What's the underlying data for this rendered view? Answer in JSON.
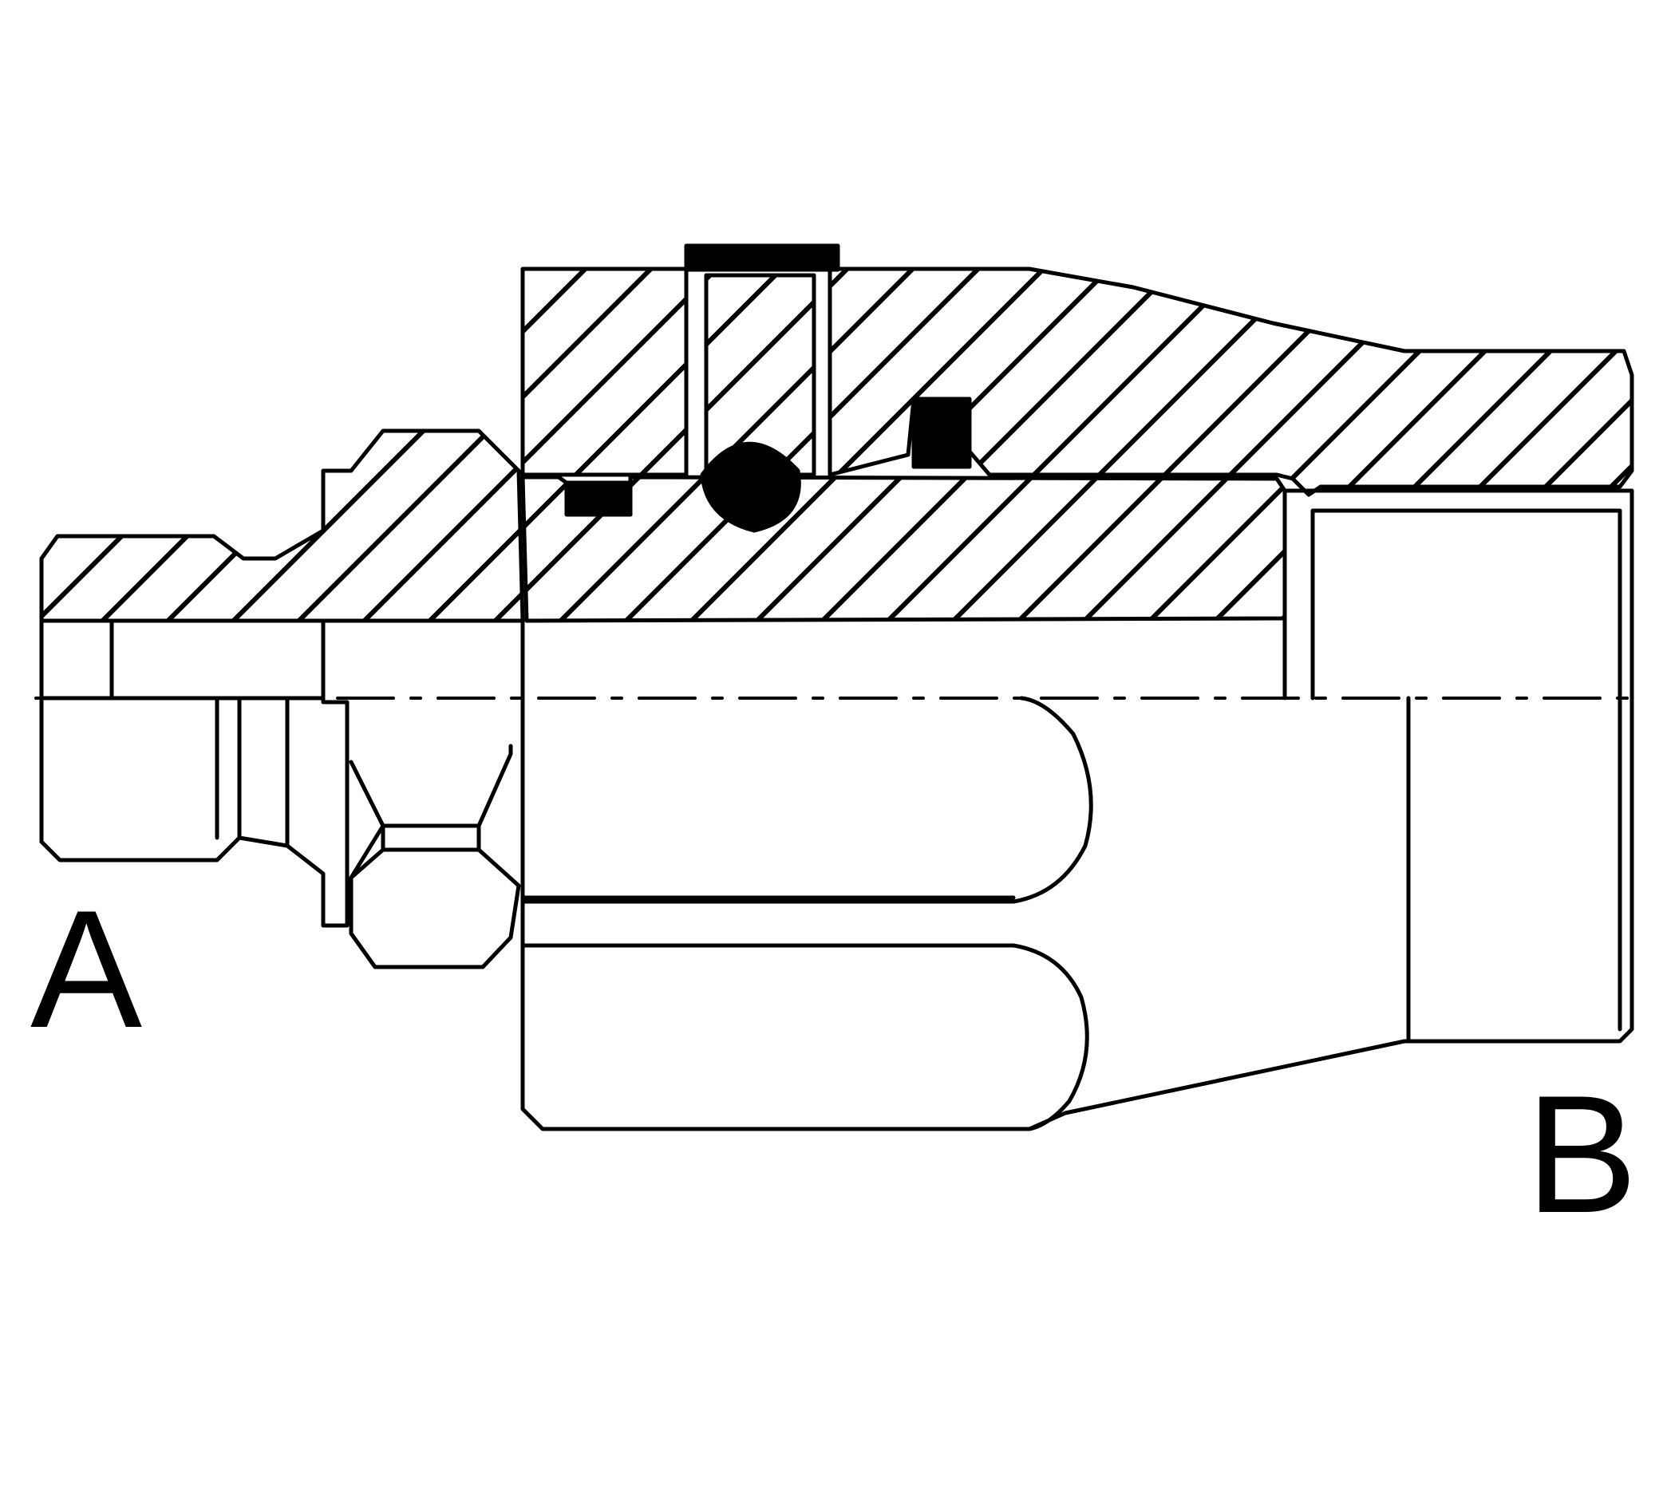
{
  "labels": {
    "port_a": "A",
    "port_b": "B"
  },
  "colors": {
    "line": "#000000",
    "background": "#ffffff",
    "seal": "#000000"
  },
  "drawing": {
    "type": "cross-section",
    "hatching": "diagonal"
  }
}
